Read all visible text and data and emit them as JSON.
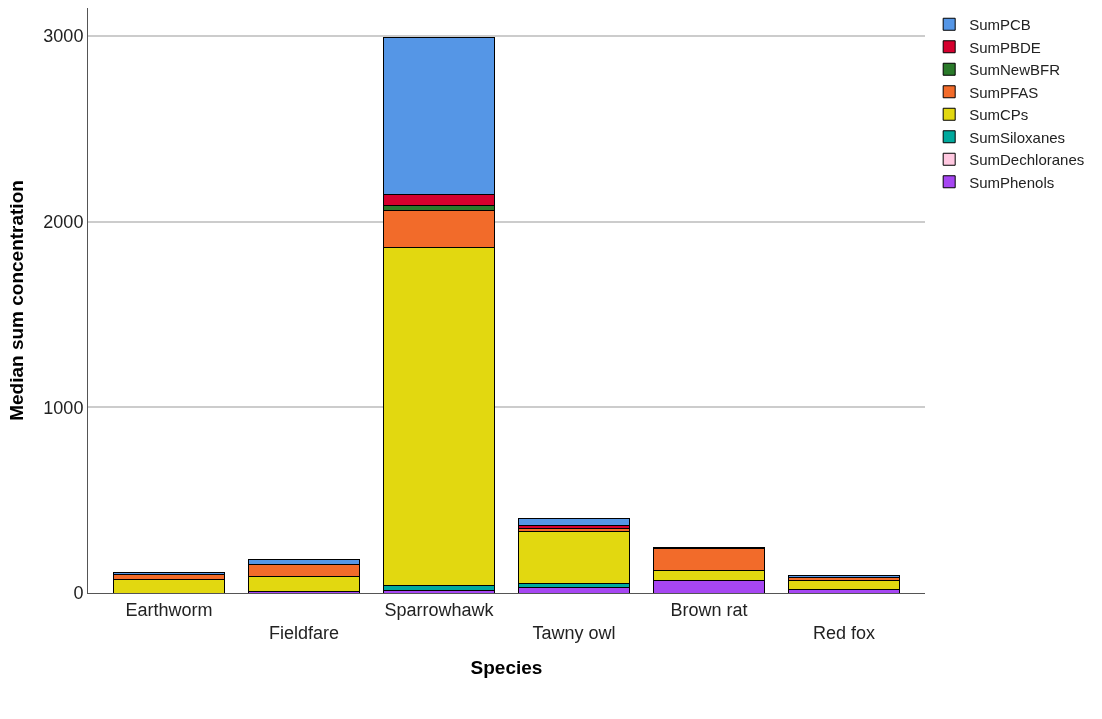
{
  "chart_data": {
    "type": "bar",
    "stacked": true,
    "xlabel": "Species",
    "ylabel": "Median sum concentration",
    "categories": [
      "Earthworm",
      "Fieldfare",
      "Sparrowhawk",
      "Tawny owl",
      "Brown rat",
      "Red fox"
    ],
    "series": [
      {
        "name": "SumPhenols",
        "color": "#a646f2",
        "values": [
          null,
          7,
          15,
          30,
          70,
          20
        ]
      },
      {
        "name": "SumDechloranes",
        "color": "#ffc8e0",
        "values": [
          null,
          null,
          null,
          null,
          null,
          null
        ]
      },
      {
        "name": "SumSiloxanes",
        "color": "#00a99d",
        "values": [
          null,
          null,
          25,
          20,
          null,
          null
        ]
      },
      {
        "name": "SumCPs",
        "color": "#e2d810",
        "values": [
          75,
          83,
          1818,
          282,
          50,
          45
        ]
      },
      {
        "name": "SumPFAS",
        "color": "#f26b2a",
        "values": [
          23,
          61,
          202,
          18,
          118,
          20
        ]
      },
      {
        "name": "SumNewBFR",
        "color": "#2a7a2a",
        "values": [
          null,
          null,
          24,
          null,
          null,
          null
        ]
      },
      {
        "name": "SumPBDE",
        "color": "#d5002e",
        "values": [
          null,
          null,
          60,
          14,
          null,
          null
        ]
      },
      {
        "name": "SumPCB",
        "color": "#5596e6",
        "values": [
          12,
          27,
          846,
          36,
          8,
          7
        ]
      }
    ],
    "ylim": [
      0,
      3150
    ],
    "yticks": [
      0,
      1000,
      2000,
      3000
    ],
    "grid": "y",
    "legend": "top right"
  }
}
